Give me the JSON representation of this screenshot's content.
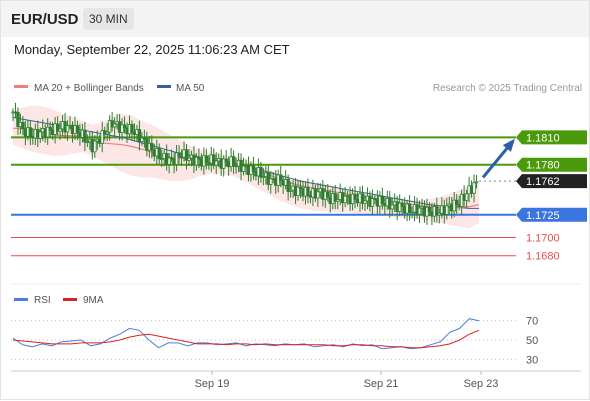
{
  "header": {
    "symbol": "EUR/USD",
    "timeframe": "30 MIN",
    "datetime": "Monday, September 22, 2025 11:06:23 AM CET"
  },
  "legend": {
    "ma20": "MA 20 + Bollinger Bands",
    "ma50": "MA 50",
    "credit": "Research © 2025 Trading Central",
    "rsi": "RSI",
    "rsi_ma": "9MA"
  },
  "colors": {
    "ma20": "#f08080",
    "ma50": "#3b5e9e",
    "bollinger_fill": "#fde0e0",
    "candle": "#2e7d2e",
    "resistance": "#4a9a0c",
    "support_blue": "#3a75e0",
    "support_red": "#e05050",
    "current": "#222222",
    "arrow": "#2a5fa8",
    "rsi": "#4a7fe0",
    "rsi_ma": "#e02020"
  },
  "chart_data": [
    {
      "type": "candlestick",
      "y_range": [
        1.165,
        1.185
      ],
      "x_tick_labels": [
        "Sep 19",
        "Sep 21",
        "Sep 23"
      ],
      "levels": [
        {
          "label": "1.1810",
          "value": 1.181,
          "kind": "resistance"
        },
        {
          "label": "1.1780",
          "value": 1.178,
          "kind": "resistance"
        },
        {
          "label": "1.1762",
          "value": 1.1762,
          "kind": "current"
        },
        {
          "label": "1.1725",
          "value": 1.1725,
          "kind": "support"
        },
        {
          "label": "1.1700",
          "value": 1.17,
          "kind": "support-red"
        },
        {
          "label": "1.1680",
          "value": 1.168,
          "kind": "support-red"
        }
      ],
      "close_path": [
        1.1838,
        1.1818,
        1.1812,
        1.1816,
        1.1818,
        1.1822,
        1.182,
        1.1812,
        1.18,
        1.1812,
        1.1826,
        1.182,
        1.1818,
        1.1808,
        1.1796,
        1.1788,
        1.1784,
        1.1792,
        1.1786,
        1.1784,
        1.1785,
        1.1782,
        1.1783,
        1.1778,
        1.1774,
        1.177,
        1.1762,
        1.1764,
        1.1752,
        1.1752,
        1.1747,
        1.175,
        1.1742,
        1.1744,
        1.1743,
        1.1742,
        1.174,
        1.174,
        1.1736,
        1.1734,
        1.173,
        1.1731,
        1.1728,
        1.1728,
        1.1734,
        1.1738,
        1.1752,
        1.1762
      ],
      "ma20_path": [
        1.182,
        1.182,
        1.1818,
        1.1816,
        1.1813,
        1.1812,
        1.1812,
        1.1811,
        1.1806,
        1.1804,
        1.1803,
        1.1802,
        1.18,
        1.1797,
        1.1794,
        1.179,
        1.1788,
        1.1787,
        1.1786,
        1.1785,
        1.1784,
        1.1783,
        1.1781,
        1.1779,
        1.1776,
        1.1772,
        1.1768,
        1.1764,
        1.176,
        1.1757,
        1.1755,
        1.1753,
        1.1751,
        1.1749,
        1.1747,
        1.1745,
        1.1744,
        1.1742,
        1.174,
        1.1738,
        1.1737,
        1.1735,
        1.1734,
        1.1733,
        1.1733,
        1.1733,
        1.1734,
        1.1736
      ],
      "ma50_path": [
        1.1832,
        1.183,
        1.1828,
        1.1826,
        1.1824,
        1.1822,
        1.182,
        1.1818,
        1.1816,
        1.1814,
        1.1812,
        1.181,
        1.1807,
        1.1804,
        1.1801,
        1.1798,
        1.1795,
        1.1792,
        1.179,
        1.1788,
        1.1786,
        1.1784,
        1.1782,
        1.178,
        1.1777,
        1.1774,
        1.1771,
        1.1768,
        1.1765,
        1.1762,
        1.176,
        1.1758,
        1.1756,
        1.1754,
        1.1752,
        1.175,
        1.1748,
        1.1746,
        1.1744,
        1.1742,
        1.174,
        1.1738,
        1.1736,
        1.1735,
        1.1734,
        1.1733,
        1.1732,
        1.1732
      ],
      "band_upper": [
        1.1838,
        1.1843,
        1.1845,
        1.1844,
        1.1841,
        1.1836,
        1.1832,
        1.1828,
        1.1824,
        1.1826,
        1.1832,
        1.1836,
        1.1834,
        1.1828,
        1.1824,
        1.1818,
        1.1812,
        1.1806,
        1.18,
        1.1796,
        1.1793,
        1.1791,
        1.179,
        1.1788,
        1.1784,
        1.1779,
        1.1774,
        1.177,
        1.1766,
        1.1763,
        1.1761,
        1.1759,
        1.1757,
        1.1754,
        1.1751,
        1.1749,
        1.1747,
        1.1745,
        1.1743,
        1.1742,
        1.1741,
        1.1741,
        1.1742,
        1.1744,
        1.1748,
        1.1752,
        1.1757,
        1.176
      ],
      "band_lower": [
        1.1802,
        1.1798,
        1.1794,
        1.1792,
        1.179,
        1.179,
        1.1792,
        1.1794,
        1.179,
        1.1784,
        1.1778,
        1.1772,
        1.1768,
        1.1766,
        1.1766,
        1.1764,
        1.1762,
        1.1762,
        1.1764,
        1.1768,
        1.177,
        1.177,
        1.1768,
        1.1764,
        1.1758,
        1.1752,
        1.1746,
        1.174,
        1.1736,
        1.1732,
        1.173,
        1.1729,
        1.1728,
        1.1728,
        1.1727,
        1.1726,
        1.1725,
        1.1724,
        1.1723,
        1.1722,
        1.1721,
        1.172,
        1.1718,
        1.1716,
        1.1714,
        1.1712,
        1.171,
        1.1716
      ],
      "projection": {
        "from": 1.1762,
        "to": 1.181
      }
    },
    {
      "type": "line",
      "y_range": [
        20,
        80
      ],
      "y_tick_labels": [
        "70",
        "50",
        "30"
      ],
      "y_ticks": [
        70,
        50,
        30
      ],
      "series": [
        {
          "name": "RSI",
          "values": [
            52,
            45,
            43,
            46,
            44,
            48,
            49,
            50,
            44,
            46,
            52,
            56,
            62,
            60,
            50,
            42,
            47,
            47,
            44,
            47,
            47,
            45,
            46,
            47,
            44,
            46,
            45,
            44,
            46,
            45,
            46,
            43,
            44,
            45,
            43,
            46,
            44,
            45,
            41,
            42,
            43,
            41,
            42,
            45,
            48,
            58,
            62,
            72,
            70
          ]
        },
        {
          "name": "9MA",
          "values": [
            50,
            49,
            48,
            47,
            46,
            46,
            46,
            47,
            47,
            47,
            48,
            50,
            53,
            55,
            56,
            54,
            52,
            50,
            48,
            46,
            46,
            46,
            45,
            46,
            46,
            45,
            46,
            45,
            45,
            45,
            45,
            45,
            45,
            44,
            44,
            45,
            45,
            44,
            44,
            43,
            43,
            42,
            42,
            43,
            44,
            46,
            50,
            56,
            60
          ]
        }
      ]
    }
  ]
}
